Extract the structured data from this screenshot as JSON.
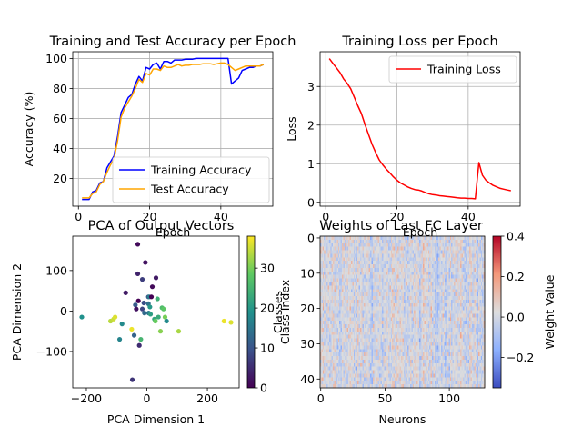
{
  "chart_data": [
    {
      "type": "line",
      "title": "Training and Test Accuracy per Epoch",
      "xlabel": "Epoch",
      "ylabel": "Accuracy (%)",
      "xlim": [
        -1.6,
        54.6
      ],
      "ylim": [
        1.5,
        104.5
      ],
      "xticks": [
        0,
        20,
        40
      ],
      "yticks": [
        20,
        40,
        60,
        80,
        100
      ],
      "grid": true,
      "legend_position": "bottom-right",
      "x": [
        1,
        2,
        3,
        4,
        5,
        6,
        7,
        8,
        9,
        10,
        11,
        12,
        13,
        14,
        15,
        16,
        17,
        18,
        19,
        20,
        21,
        22,
        23,
        24,
        25,
        26,
        27,
        28,
        29,
        30,
        31,
        32,
        33,
        34,
        35,
        36,
        37,
        38,
        39,
        40,
        41,
        42,
        43,
        44,
        45,
        46,
        47,
        48,
        49,
        50,
        51,
        52
      ],
      "series": [
        {
          "name": "Training Accuracy",
          "color": "#0000ff",
          "values": [
            6,
            6,
            6,
            11,
            12,
            17,
            18,
            27,
            31,
            35,
            48,
            64,
            69,
            74,
            76,
            83,
            88,
            85,
            94,
            93,
            96,
            97,
            93,
            98,
            98,
            97,
            99,
            99,
            99,
            99.5,
            99.5,
            99.5,
            100,
            100,
            100,
            100,
            100,
            100,
            100,
            100,
            100,
            100,
            83,
            85,
            87,
            92,
            93,
            94,
            94,
            95,
            95,
            96
          ]
        },
        {
          "name": "Test Accuracy",
          "color": "#ffa500",
          "values": [
            7,
            7,
            7,
            10,
            11,
            16,
            18,
            24,
            29,
            33,
            45,
            61,
            67,
            71,
            75,
            80,
            86,
            84,
            90,
            89,
            93,
            93,
            92,
            95,
            94,
            94,
            95,
            96,
            95,
            95.5,
            95.5,
            96,
            96,
            96,
            96.5,
            96.5,
            96.5,
            96,
            96.5,
            97,
            97,
            96,
            94,
            92,
            93,
            94,
            95,
            95,
            95,
            95,
            95,
            96
          ]
        }
      ]
    },
    {
      "type": "line",
      "title": "Training Loss per Epoch",
      "xlabel": "Epoch",
      "ylabel": "Loss",
      "xlim": [
        -1.6,
        54.6
      ],
      "ylim": [
        -0.1,
        3.9
      ],
      "xticks": [
        0,
        20,
        40
      ],
      "yticks": [
        0,
        1,
        2,
        3
      ],
      "grid": true,
      "legend_position": "top-right",
      "x": [
        1,
        2,
        3,
        4,
        5,
        6,
        7,
        8,
        9,
        10,
        11,
        12,
        13,
        14,
        15,
        16,
        17,
        18,
        19,
        20,
        21,
        22,
        23,
        24,
        25,
        26,
        27,
        28,
        29,
        30,
        31,
        32,
        33,
        34,
        35,
        36,
        37,
        38,
        39,
        40,
        41,
        42,
        43,
        44,
        45,
        46,
        47,
        48,
        49,
        50,
        51,
        52
      ],
      "series": [
        {
          "name": "Training Loss",
          "color": "#ff0000",
          "values": [
            3.72,
            3.6,
            3.48,
            3.36,
            3.2,
            3.08,
            2.94,
            2.72,
            2.5,
            2.3,
            2.02,
            1.76,
            1.5,
            1.29,
            1.1,
            0.97,
            0.86,
            0.76,
            0.66,
            0.57,
            0.5,
            0.45,
            0.4,
            0.36,
            0.33,
            0.32,
            0.29,
            0.25,
            0.22,
            0.2,
            0.19,
            0.17,
            0.16,
            0.15,
            0.14,
            0.13,
            0.12,
            0.11,
            0.11,
            0.1,
            0.1,
            0.09,
            1.03,
            0.7,
            0.57,
            0.5,
            0.44,
            0.4,
            0.36,
            0.34,
            0.32,
            0.3
          ]
        }
      ]
    },
    {
      "type": "scatter",
      "title": "PCA of Output Vectors",
      "xlabel": "PCA Dimension 1",
      "ylabel": "PCA Dimension 2",
      "xlim": [
        -245,
        305
      ],
      "ylim": [
        -190,
        185
      ],
      "xticks": [
        -200,
        0,
        200
      ],
      "yticks": [
        -100,
        0,
        100
      ],
      "grid": false,
      "colormap": "viridis",
      "color_value_range": [
        0,
        38
      ],
      "colorbar_ticks": [
        0,
        10,
        20,
        30
      ],
      "points": [
        {
          "x": -215,
          "y": -15,
          "c": 19
        },
        {
          "x": -120,
          "y": -25,
          "c": 34
        },
        {
          "x": -110,
          "y": -20,
          "c": 35
        },
        {
          "x": -105,
          "y": -15,
          "c": 36
        },
        {
          "x": -90,
          "y": -70,
          "c": 17
        },
        {
          "x": -82,
          "y": -32,
          "c": 18
        },
        {
          "x": -70,
          "y": 45,
          "c": 3
        },
        {
          "x": -50,
          "y": -45,
          "c": 37
        },
        {
          "x": -48,
          "y": -170,
          "c": 6
        },
        {
          "x": -42,
          "y": -60,
          "c": 12
        },
        {
          "x": -38,
          "y": 15,
          "c": 11
        },
        {
          "x": -35,
          "y": 5,
          "c": 2
        },
        {
          "x": -30,
          "y": 165,
          "c": 1
        },
        {
          "x": -30,
          "y": 92,
          "c": 4
        },
        {
          "x": -28,
          "y": 25,
          "c": 0
        },
        {
          "x": -25,
          "y": -85,
          "c": 5
        },
        {
          "x": -20,
          "y": -70,
          "c": 25
        },
        {
          "x": -15,
          "y": 78,
          "c": 7
        },
        {
          "x": -15,
          "y": 5,
          "c": 8
        },
        {
          "x": -10,
          "y": 20,
          "c": 9
        },
        {
          "x": -8,
          "y": -5,
          "c": 13
        },
        {
          "x": -5,
          "y": 120,
          "c": 2
        },
        {
          "x": 5,
          "y": 35,
          "c": 10
        },
        {
          "x": 5,
          "y": 18,
          "c": 14
        },
        {
          "x": 6,
          "y": -5,
          "c": 15
        },
        {
          "x": 8,
          "y": 35,
          "c": 16
        },
        {
          "x": 10,
          "y": 10,
          "c": 20
        },
        {
          "x": 12,
          "y": -8,
          "c": 21
        },
        {
          "x": 15,
          "y": 35,
          "c": 0
        },
        {
          "x": 18,
          "y": 60,
          "c": 1
        },
        {
          "x": 25,
          "y": -20,
          "c": 22
        },
        {
          "x": 28,
          "y": -25,
          "c": 29
        },
        {
          "x": 30,
          "y": 82,
          "c": 3
        },
        {
          "x": 35,
          "y": 30,
          "c": 24
        },
        {
          "x": 38,
          "y": -15,
          "c": 23
        },
        {
          "x": 45,
          "y": -50,
          "c": 31
        },
        {
          "x": 50,
          "y": 8,
          "c": 26
        },
        {
          "x": 55,
          "y": 5,
          "c": 28
        },
        {
          "x": 60,
          "y": -15,
          "c": 30
        },
        {
          "x": 65,
          "y": -25,
          "c": 18
        },
        {
          "x": 105,
          "y": -50,
          "c": 33
        },
        {
          "x": 255,
          "y": -25,
          "c": 37
        },
        {
          "x": 278,
          "y": -28,
          "c": 36
        }
      ]
    },
    {
      "type": "heatmap",
      "title": "Weights of Last FC Layer",
      "xlabel": "Neurons",
      "ylabel": "Classes",
      "ylabel_overlay": "Class Index",
      "rows": 43,
      "cols": 128,
      "xticks": [
        0,
        50,
        100
      ],
      "yticks": [
        0,
        10,
        20,
        30,
        40
      ],
      "colormap": "coolwarm",
      "value_range": [
        -0.35,
        0.4
      ],
      "colorbar_label": "Weight Value",
      "colorbar_ticks": [
        0.4,
        0.2,
        0.0,
        -0.2
      ],
      "colorbar_tick_labels": [
        "0.4",
        "0.2",
        "0.0",
        "−0.2"
      ]
    }
  ]
}
